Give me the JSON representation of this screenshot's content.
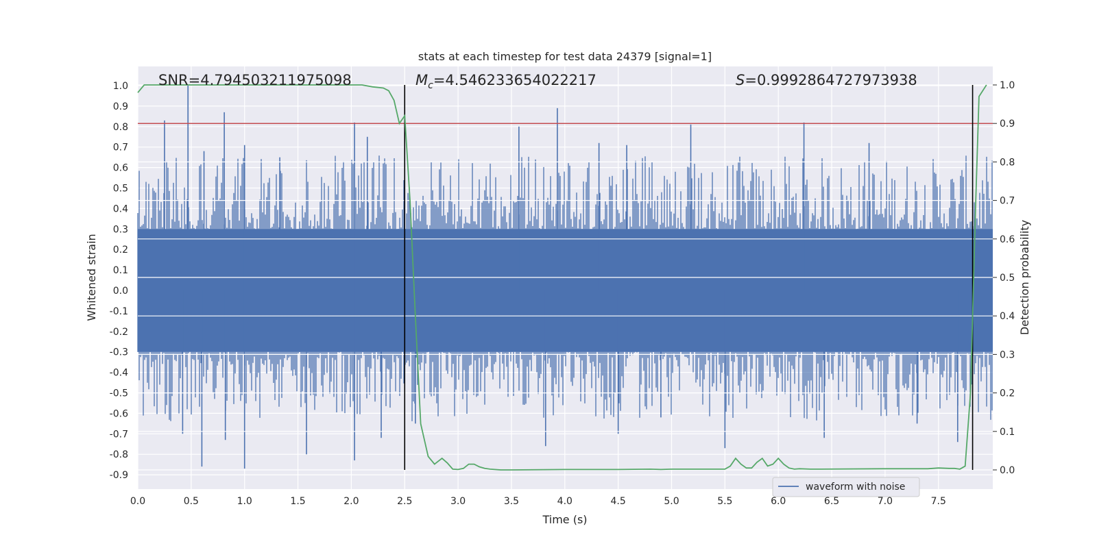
{
  "chart_data": {
    "type": "line",
    "title": "stats at each timestep for test data 24379 [signal=1]",
    "xlabel": "Time (s)",
    "ylabel": "Whitened strain",
    "y2label": "Detection probability",
    "xlim": [
      0.0,
      8.0
    ],
    "ylim": [
      -0.97,
      1.09
    ],
    "y2lim": [
      -0.045,
      1.045
    ],
    "x_ticks": [
      "0.0",
      "0.5",
      "1.0",
      "1.5",
      "2.0",
      "2.5",
      "3.0",
      "3.5",
      "4.0",
      "4.5",
      "5.0",
      "5.5",
      "6.0",
      "6.5",
      "7.0",
      "7.5"
    ],
    "x_tick_values": [
      0.0,
      0.5,
      1.0,
      1.5,
      2.0,
      2.5,
      3.0,
      3.5,
      4.0,
      4.5,
      5.0,
      5.5,
      6.0,
      6.5,
      7.0,
      7.5
    ],
    "y_ticks": [
      "1.0",
      "0.9",
      "0.8",
      "0.7",
      "0.6",
      "0.5",
      "0.4",
      "0.3",
      "0.2",
      "0.1",
      "0.0",
      "-0.1",
      "-0.2",
      "-0.3",
      "-0.4",
      "-0.5",
      "-0.6",
      "-0.7",
      "-0.8",
      "-0.9"
    ],
    "y_tick_values": [
      1.0,
      0.9,
      0.8,
      0.7,
      0.6,
      0.5,
      0.4,
      0.3,
      0.2,
      0.1,
      0.0,
      -0.1,
      -0.2,
      -0.3,
      -0.4,
      -0.5,
      -0.6,
      -0.7,
      -0.8,
      -0.9
    ],
    "y2_ticks": [
      "1.0",
      "0.9",
      "0.8",
      "0.7",
      "0.6",
      "0.5",
      "0.4",
      "0.3",
      "0.2",
      "0.1",
      "0.0"
    ],
    "y2_tick_values": [
      1.0,
      0.9,
      0.8,
      0.7,
      0.6,
      0.5,
      0.4,
      0.3,
      0.2,
      0.1,
      0.0
    ],
    "annotations": {
      "snr_text": "SNR=4.794503211975098",
      "mc_label": "M",
      "mc_sub": "c",
      "mc_value": "=4.546233654022217",
      "s_label": "S",
      "s_value": "=0.9992864727973938"
    },
    "legend": {
      "entries": [
        "waveform with noise"
      ],
      "placement": "lower-right"
    },
    "vertical_lines_x": [
      2.5,
      7.82
    ],
    "threshold_y2": 0.9,
    "waveform": {
      "name": "waveform with noise",
      "color": "#4c72b0",
      "noise_band": [
        -0.3,
        0.3
      ],
      "spikes": [
        [
          0.47,
          1.0
        ],
        [
          0.25,
          0.83
        ],
        [
          0.81,
          0.87
        ],
        [
          1.0,
          0.71
        ],
        [
          2.03,
          0.82
        ],
        [
          2.15,
          0.75
        ],
        [
          3.93,
          0.89
        ],
        [
          3.57,
          0.8
        ],
        [
          5.18,
          0.81
        ],
        [
          6.24,
          0.82
        ],
        [
          0.62,
          0.68
        ],
        [
          1.33,
          0.65
        ],
        [
          4.32,
          0.72
        ],
        [
          4.58,
          0.71
        ],
        [
          6.85,
          0.72
        ],
        [
          0.6,
          -0.86
        ],
        [
          1.0,
          -0.87
        ],
        [
          0.42,
          -0.7
        ],
        [
          0.82,
          -0.73
        ],
        [
          1.58,
          -0.8
        ],
        [
          2.03,
          -0.83
        ],
        [
          2.28,
          -0.72
        ],
        [
          3.82,
          -0.76
        ],
        [
          4.5,
          -0.7
        ],
        [
          5.5,
          -0.77
        ],
        [
          6.43,
          -0.72
        ],
        [
          7.68,
          -0.74
        ],
        [
          2.6,
          -0.65
        ],
        [
          4.9,
          -0.62
        ],
        [
          7.3,
          -0.65
        ]
      ]
    },
    "detection_probability": {
      "name": "detection probability",
      "color": "#55a868",
      "x": [
        0.0,
        0.06,
        0.15,
        0.5,
        1.0,
        1.5,
        2.0,
        2.1,
        2.2,
        2.3,
        2.35,
        2.4,
        2.45,
        2.5,
        2.55,
        2.6,
        2.65,
        2.72,
        2.78,
        2.85,
        2.9,
        2.95,
        3.0,
        3.05,
        3.1,
        3.15,
        3.2,
        3.25,
        3.3,
        3.4,
        3.5,
        4.0,
        4.5,
        4.8,
        4.9,
        5.0,
        5.5,
        5.55,
        5.6,
        5.65,
        5.7,
        5.75,
        5.8,
        5.85,
        5.9,
        5.95,
        6.0,
        6.05,
        6.1,
        6.15,
        6.2,
        6.3,
        6.4,
        7.0,
        7.4,
        7.5,
        7.6,
        7.65,
        7.7,
        7.75,
        7.8,
        7.85,
        7.88,
        7.95
      ],
      "y": [
        0.98,
        1.0,
        1.0,
        1.0,
        1.0,
        1.0,
        1.0,
        1.0,
        0.995,
        0.992,
        0.985,
        0.96,
        0.9,
        0.92,
        0.7,
        0.4,
        0.12,
        0.035,
        0.015,
        0.03,
        0.018,
        0.002,
        0.001,
        0.004,
        0.015,
        0.015,
        0.008,
        0.004,
        0.002,
        0.0,
        0.0,
        0.001,
        0.001,
        0.002,
        0.001,
        0.002,
        0.002,
        0.01,
        0.03,
        0.015,
        0.005,
        0.005,
        0.02,
        0.03,
        0.01,
        0.015,
        0.03,
        0.015,
        0.005,
        0.002,
        0.003,
        0.002,
        0.002,
        0.003,
        0.003,
        0.005,
        0.004,
        0.004,
        0.002,
        0.01,
        0.2,
        0.7,
        0.97,
        1.0
      ]
    }
  }
}
